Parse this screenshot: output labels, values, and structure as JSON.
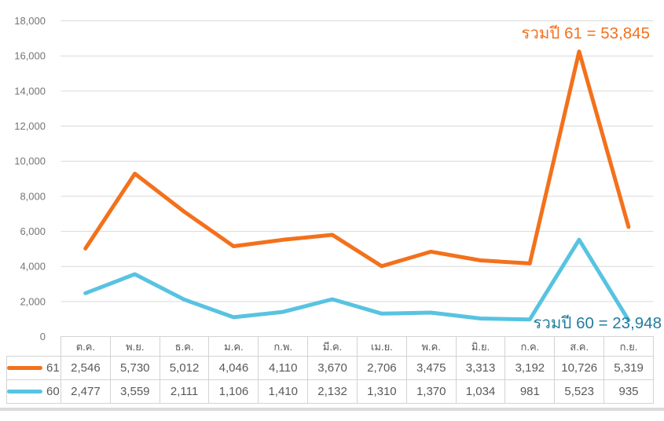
{
  "chart_data": {
    "type": "line",
    "stacked": true,
    "title": "",
    "xlabel": "",
    "ylabel": "",
    "categories": [
      "ต.ค.",
      "พ.ย.",
      "ธ.ค.",
      "ม.ค.",
      "ก.พ.",
      "มี.ค.",
      "เม.ย.",
      "พ.ค.",
      "มิ.ย.",
      "ก.ค.",
      "ส.ค.",
      "ก.ย."
    ],
    "series": [
      {
        "name": "61",
        "color": "#F3711C",
        "values": [
          2546,
          5730,
          5012,
          4046,
          4110,
          3670,
          2706,
          3475,
          3313,
          3192,
          10726,
          5319
        ],
        "total": 53845
      },
      {
        "name": "60",
        "color": "#58C3E1",
        "values": [
          2477,
          3559,
          2111,
          1106,
          1410,
          2132,
          1310,
          1370,
          1034,
          981,
          5523,
          935
        ],
        "total": 23948
      }
    ],
    "ylim": [
      0,
      18000
    ],
    "ytick_step": 2000,
    "y_tick_labels": [
      "0",
      "2,000",
      "4,000",
      "6,000",
      "8,000",
      "10,000",
      "12,000",
      "14,000",
      "16,000",
      "18,000"
    ],
    "grid": true,
    "legend_position": "table-left",
    "annotations": [
      {
        "text": "รวมปี 61 = 53,845",
        "color": "#F3711C"
      },
      {
        "text": "รวมปี 60 = 23,948",
        "color": "#217D9E"
      }
    ]
  },
  "table": {
    "headers": [
      "ต.ค.",
      "พ.ย.",
      "ธ.ค.",
      "ม.ค.",
      "ก.พ.",
      "มี.ค.",
      "เม.ย.",
      "พ.ค.",
      "มิ.ย.",
      "ก.ค.",
      "ส.ค.",
      "ก.ย."
    ],
    "rows": [
      {
        "label": "61",
        "swatch_color": "#F3711C",
        "cells": [
          "2,546",
          "5,730",
          "5,012",
          "4,046",
          "4,110",
          "3,670",
          "2,706",
          "3,475",
          "3,313",
          "3,192",
          "10,726",
          "5,319"
        ]
      },
      {
        "label": "60",
        "swatch_color": "#58C3E1",
        "cells": [
          "2,477",
          "3,559",
          "2,111",
          "1,106",
          "1,410",
          "2,132",
          "1,310",
          "1,370",
          "1,034",
          "981",
          "5,523",
          "935"
        ]
      }
    ]
  },
  "colors": {
    "grid": "#D9D9D9",
    "axis_label": "#757575",
    "table_text": "#595959",
    "table_border": "#D3D3D3",
    "background": "#FFFFFF",
    "bottom_divider": "#DBDBDB"
  }
}
